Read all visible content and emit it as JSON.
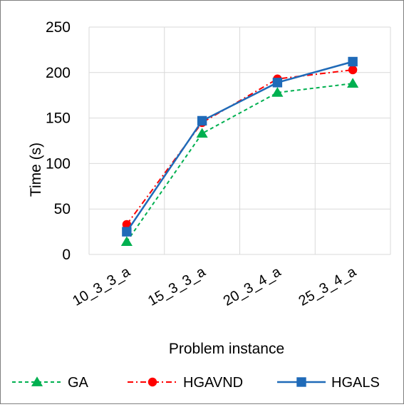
{
  "chart_data": {
    "type": "line",
    "title": "",
    "xlabel": "Problem instance",
    "ylabel": "Time (s)",
    "categories": [
      "10_3_3_a",
      "15_3_3_a",
      "20_3_4_a",
      "25_3_4_a"
    ],
    "ylim": [
      0,
      250
    ],
    "yticks": [
      0,
      50,
      100,
      150,
      200,
      250
    ],
    "grid": true,
    "legend": "bottom",
    "series": [
      {
        "name": "GA",
        "values": [
          14,
          133,
          178,
          188
        ],
        "color": "#00b050",
        "marker": "triangle",
        "line": "dashed"
      },
      {
        "name": "HGAVND",
        "values": [
          33,
          145,
          193,
          203
        ],
        "color": "#ff0000",
        "marker": "circle",
        "line": "dash-dot"
      },
      {
        "name": "HGALS",
        "values": [
          25,
          147,
          189,
          212
        ],
        "color": "#1f6ab8",
        "marker": "square",
        "line": "solid"
      }
    ]
  }
}
